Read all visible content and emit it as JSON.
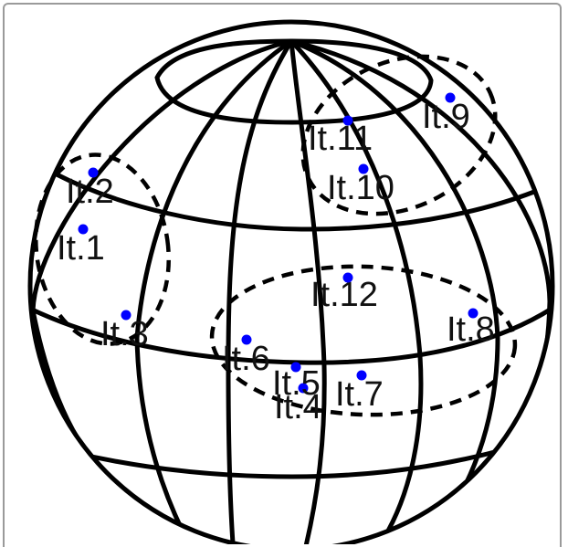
{
  "diagram": {
    "type": "sphere-grid",
    "point_color": "#0000ff",
    "line_color": "#000000",
    "points": [
      {
        "label": "It.1"
      },
      {
        "label": "It.2"
      },
      {
        "label": "It.3"
      },
      {
        "label": "It.4"
      },
      {
        "label": "It.5"
      },
      {
        "label": "It.6"
      },
      {
        "label": "It.7"
      },
      {
        "label": "It.8"
      },
      {
        "label": "It.9"
      },
      {
        "label": "It.10"
      },
      {
        "label": "It.11"
      },
      {
        "label": "It.12"
      }
    ]
  }
}
